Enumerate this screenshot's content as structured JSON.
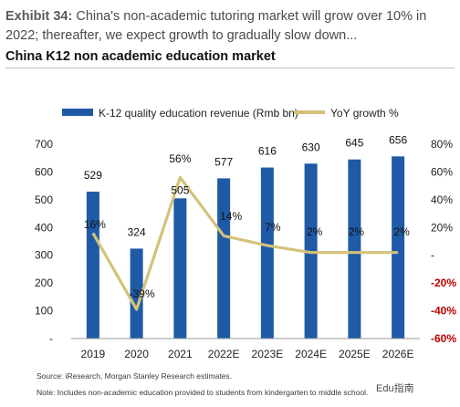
{
  "header": {
    "exhibit_label": "Exhibit 34:",
    "exhibit_text": "China's non-academic tutoring market will grow over 10% in 2022; thereafter, we expect growth to gradually slow down...",
    "chart_title": "China K12 non academic education market"
  },
  "footer": {
    "source": "Source: iResearch, Morgan Stanley Research estimates.",
    "note": "Note: Includes non-academic education provided to students from kindergarten to middle school.",
    "watermark": "Edu指南"
  },
  "colors": {
    "bar": "#1f5aa6",
    "line": "#d4c27a",
    "negative_tick": "#c00000",
    "text": "#222222"
  },
  "chart_data": {
    "type": "bar",
    "title": "China K12 non academic education market",
    "categories": [
      "2019",
      "2020",
      "2021",
      "2022E",
      "2023E",
      "2024E",
      "2025E",
      "2026E"
    ],
    "series": [
      {
        "name": "K-12 quality education revenue (Rmb bn)",
        "type": "bar",
        "axis": "left",
        "values": [
          529,
          324,
          505,
          577,
          616,
          630,
          645,
          656
        ],
        "labels": [
          "529",
          "324",
          "505",
          "577",
          "616",
          "630",
          "645",
          "656"
        ]
      },
      {
        "name": "YoY growth %",
        "type": "line",
        "axis": "right",
        "values": [
          16,
          -39,
          56,
          14,
          7,
          2,
          2,
          2
        ],
        "labels": [
          "16%",
          "-39%",
          "56%",
          "14%",
          "7%",
          "2%",
          "2%",
          "2%"
        ]
      }
    ],
    "y_left": {
      "range": [
        0,
        700
      ],
      "ticks": [
        0,
        100,
        200,
        300,
        400,
        500,
        600,
        700
      ],
      "tick_labels": [
        "-",
        "100",
        "200",
        "300",
        "400",
        "500",
        "600",
        "700"
      ]
    },
    "y_right": {
      "range": [
        -60,
        80
      ],
      "ticks": [
        -60,
        -40,
        -20,
        0,
        20,
        40,
        60,
        80
      ],
      "tick_labels": [
        "-60%",
        "-40%",
        "-20%",
        "-",
        "20%",
        "40%",
        "60%",
        "80%"
      ]
    },
    "grid": false,
    "legend": "top"
  }
}
